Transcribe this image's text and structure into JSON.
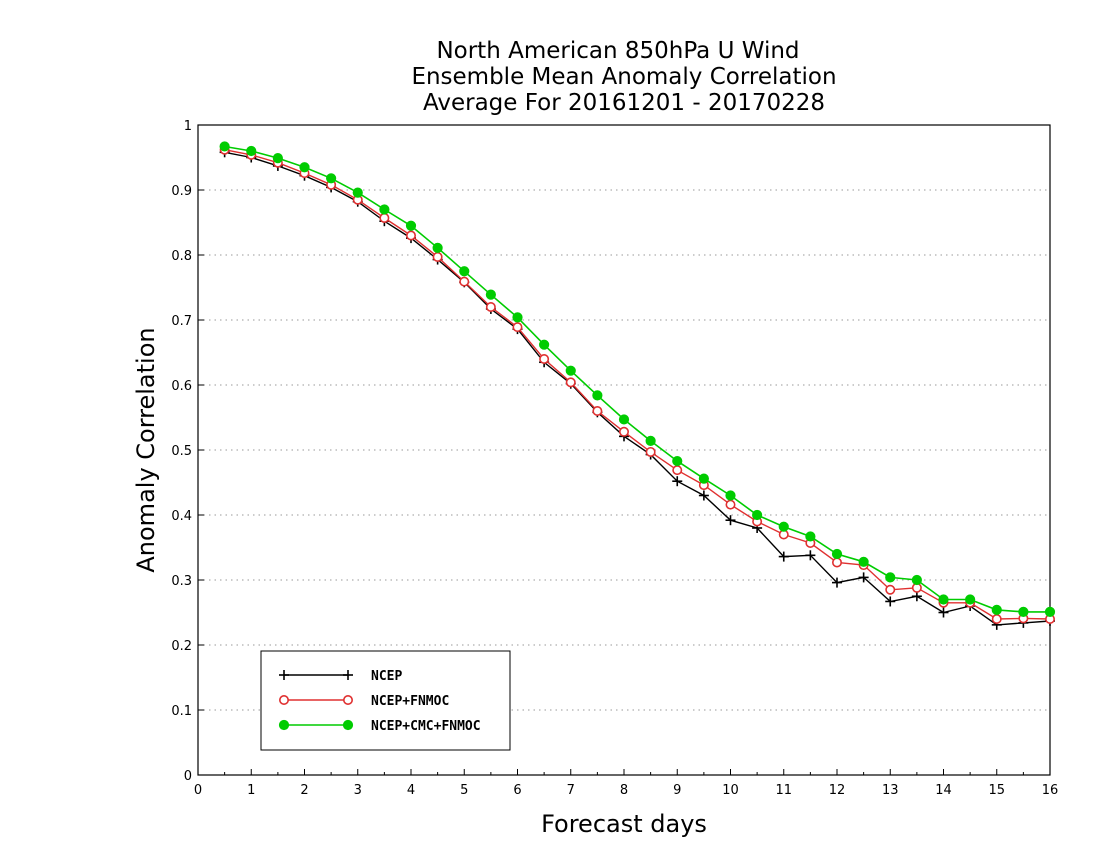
{
  "chart_data": {
    "type": "line",
    "title": [
      "North American 850hPa U Wind",
      "Ensemble Mean Anomaly Correlation",
      "Average For 20161201 - 20170228"
    ],
    "xlabel": "Forecast days",
    "ylabel": "Anomaly Correlation",
    "xlim": [
      0,
      16
    ],
    "ylim": [
      0,
      1
    ],
    "xticks": [
      0,
      1,
      2,
      3,
      4,
      5,
      6,
      7,
      8,
      9,
      10,
      11,
      12,
      13,
      14,
      15,
      16
    ],
    "yticks": [
      0,
      0.1,
      0.2,
      0.3,
      0.4,
      0.5,
      0.6,
      0.7,
      0.8,
      0.9,
      1
    ],
    "grid": "horizontal dotted",
    "legend_position": "bottom-left",
    "x": [
      0.5,
      1,
      1.5,
      2,
      2.5,
      3,
      3.5,
      4,
      4.5,
      5,
      5.5,
      6,
      6.5,
      7,
      7.5,
      8,
      8.5,
      9,
      9.5,
      10,
      10.5,
      11,
      11.5,
      12,
      12.5,
      13,
      13.5,
      14,
      14.5,
      15,
      15.5,
      16
    ],
    "series": [
      {
        "name": "NCEP",
        "color": "#000000",
        "marker": "plus",
        "values": [
          0.958,
          0.95,
          0.937,
          0.922,
          0.904,
          0.882,
          0.852,
          0.826,
          0.793,
          0.758,
          0.717,
          0.686,
          0.635,
          0.602,
          0.558,
          0.521,
          0.493,
          0.452,
          0.43,
          0.392,
          0.38,
          0.336,
          0.338,
          0.296,
          0.304,
          0.267,
          0.275,
          0.25,
          0.26,
          0.231,
          0.234,
          0.237
        ]
      },
      {
        "name": "NCEP+FNMOC",
        "color": "#e03030",
        "marker": "open-circle",
        "values": [
          0.962,
          0.954,
          0.942,
          0.926,
          0.908,
          0.885,
          0.857,
          0.83,
          0.797,
          0.759,
          0.72,
          0.689,
          0.64,
          0.604,
          0.56,
          0.528,
          0.497,
          0.469,
          0.446,
          0.416,
          0.39,
          0.37,
          0.357,
          0.327,
          0.323,
          0.285,
          0.288,
          0.265,
          0.265,
          0.24,
          0.241,
          0.24
        ]
      },
      {
        "name": "NCEP+CMC+FNMOC",
        "color": "#00cc00",
        "marker": "filled-circle",
        "values": [
          0.967,
          0.96,
          0.949,
          0.935,
          0.918,
          0.896,
          0.87,
          0.845,
          0.811,
          0.775,
          0.739,
          0.704,
          0.662,
          0.622,
          0.584,
          0.547,
          0.514,
          0.483,
          0.456,
          0.43,
          0.4,
          0.382,
          0.367,
          0.34,
          0.328,
          0.304,
          0.3,
          0.27,
          0.27,
          0.254,
          0.251,
          0.251
        ]
      }
    ]
  }
}
